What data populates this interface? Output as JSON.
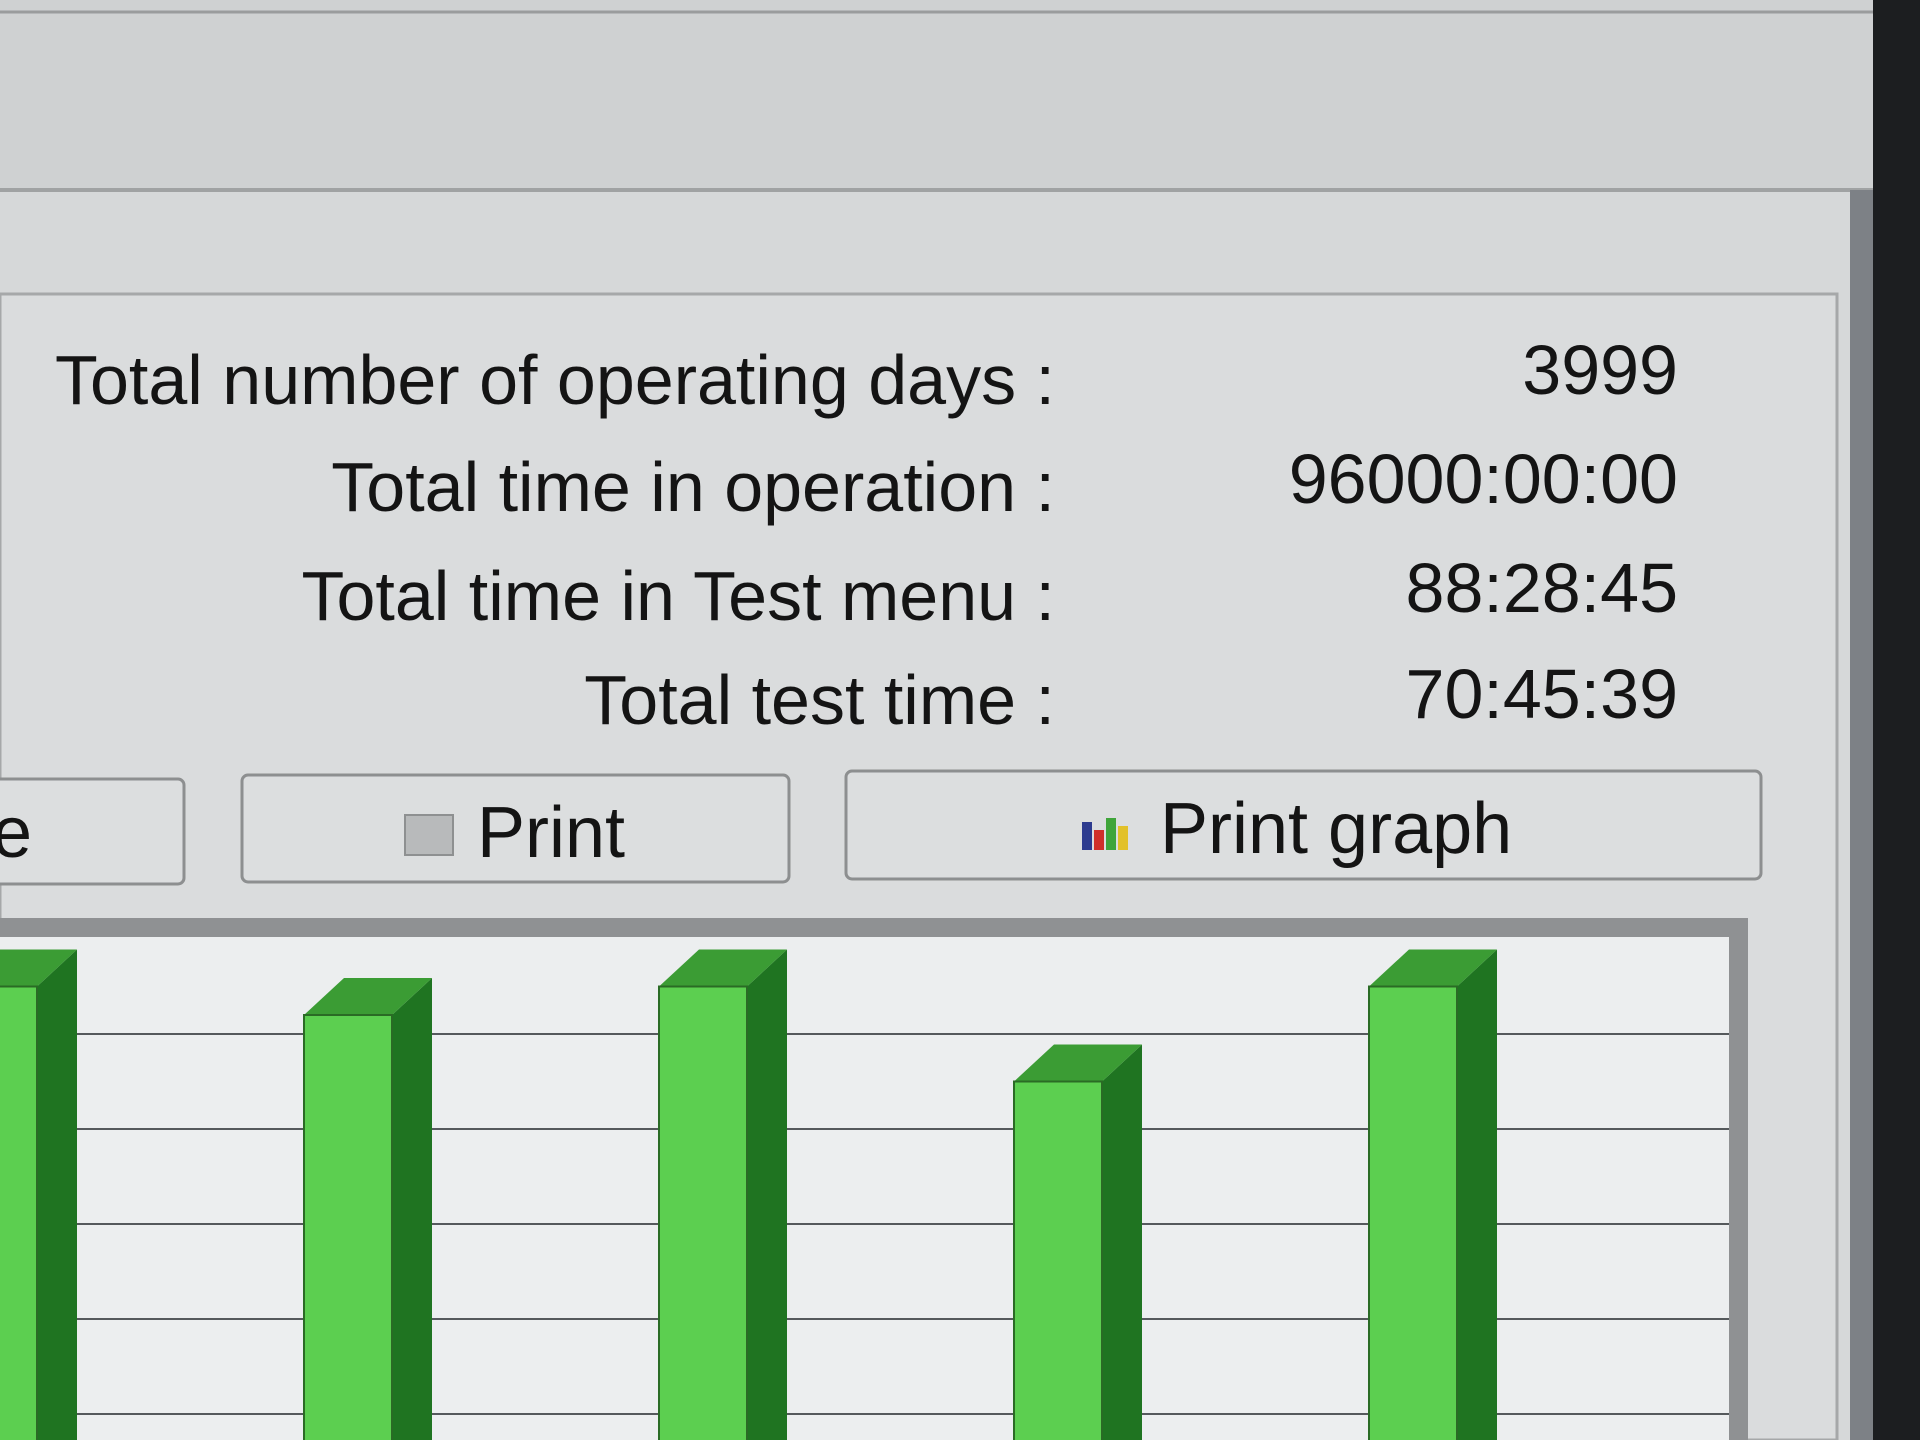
{
  "stats": [
    {
      "label": "Total number of operating days :",
      "value": 3999
    },
    {
      "label": "Total time in operation :",
      "value": "96000:00:00"
    },
    {
      "label": "Total time in Test menu :",
      "value": "88:28:45"
    },
    {
      "label": "Total test time :",
      "value": "70:45:39"
    }
  ],
  "buttons": [
    {
      "label": "e"
    },
    {
      "label": "Print"
    },
    {
      "label": "Print graph"
    }
  ],
  "chart_data": {
    "type": "bar",
    "categories": [
      null,
      null,
      null,
      null,
      null
    ],
    "values": [
      5.5,
      5.2,
      5.5,
      4.5,
      5.5
    ],
    "ylim": [
      0,
      6
    ],
    "grid": true,
    "color": "#5ccf50"
  }
}
